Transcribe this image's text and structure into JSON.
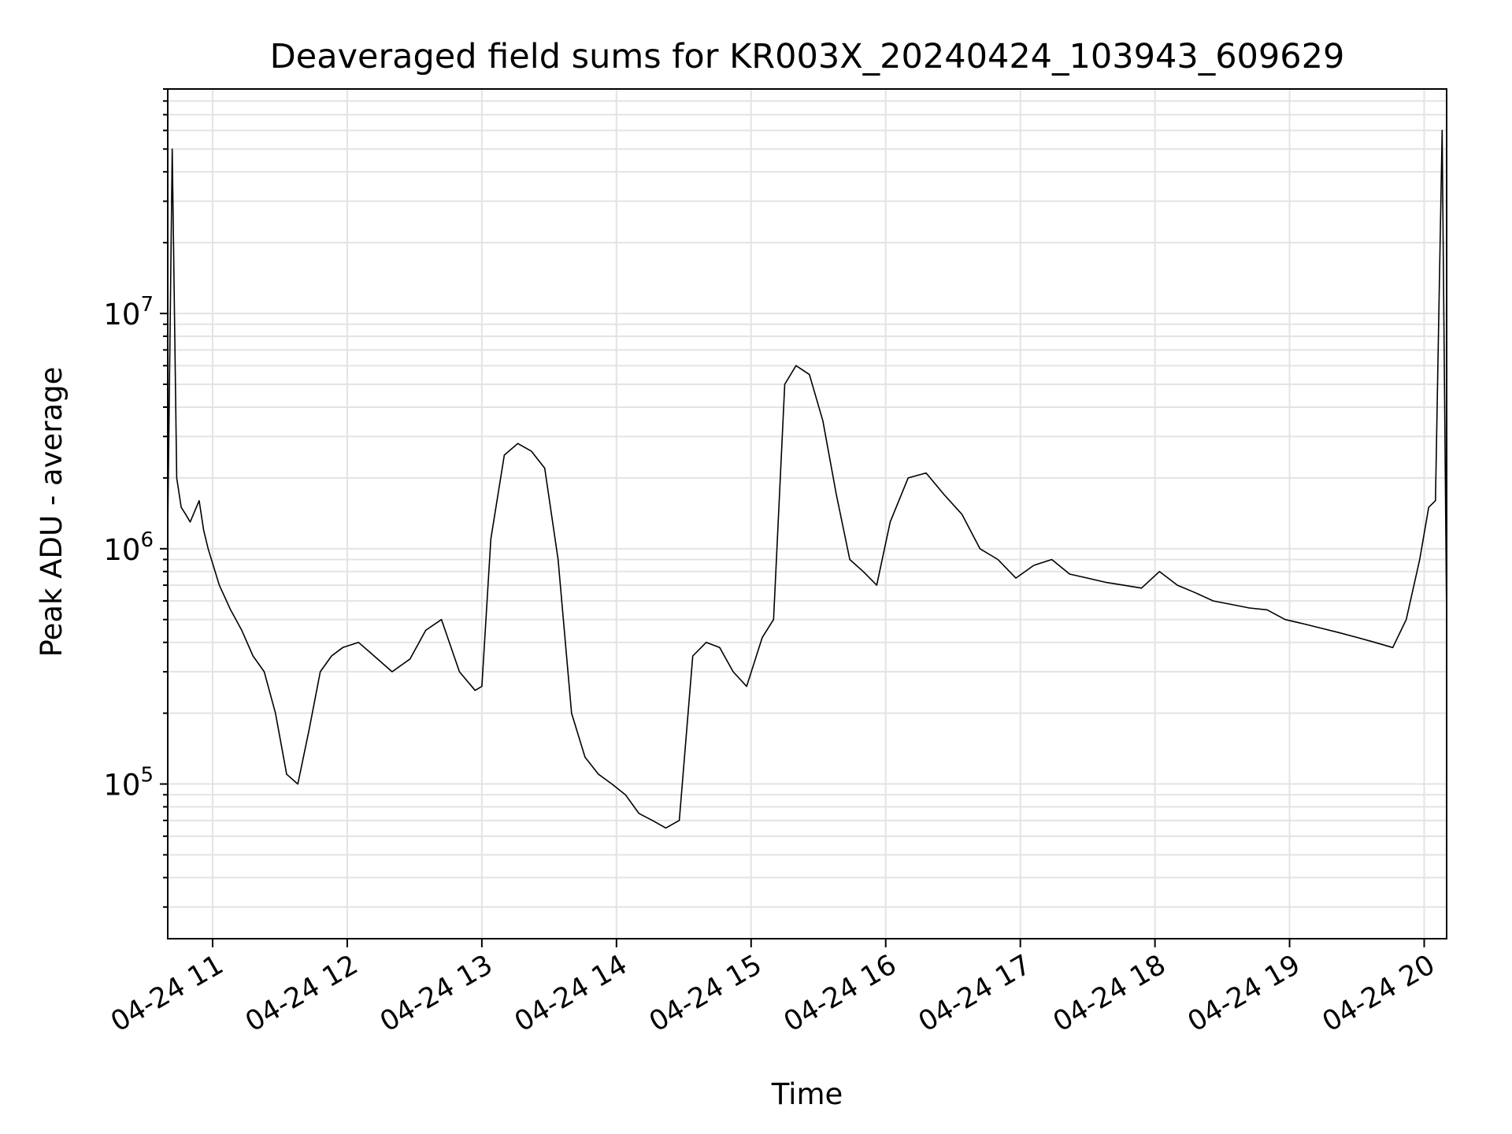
{
  "chart_data": {
    "type": "line",
    "title": "Deaveraged field sums for KR003X_20240424_103943_609629",
    "xlabel": "Time",
    "ylabel": "Peak ADU - average",
    "yscale": "log",
    "xlim": [
      "2024-04-24 10:40",
      "2024-04-24 20:10"
    ],
    "ylim": [
      22000,
      90000000
    ],
    "grid": true,
    "line_color": "#000000",
    "grid_color": "#e3e3e3",
    "x_ticks": [
      {
        "value": "2024-04-24 11:00",
        "label": "04-24 11"
      },
      {
        "value": "2024-04-24 12:00",
        "label": "04-24 12"
      },
      {
        "value": "2024-04-24 13:00",
        "label": "04-24 13"
      },
      {
        "value": "2024-04-24 14:00",
        "label": "04-24 14"
      },
      {
        "value": "2024-04-24 15:00",
        "label": "04-24 15"
      },
      {
        "value": "2024-04-24 16:00",
        "label": "04-24 16"
      },
      {
        "value": "2024-04-24 17:00",
        "label": "04-24 17"
      },
      {
        "value": "2024-04-24 18:00",
        "label": "04-24 18"
      },
      {
        "value": "2024-04-24 19:00",
        "label": "04-24 19"
      },
      {
        "value": "2024-04-24 20:00",
        "label": "04-24 20"
      }
    ],
    "y_ticks": [
      {
        "value": 100000,
        "base": "10",
        "exp": "5"
      },
      {
        "value": 1000000,
        "base": "10",
        "exp": "6"
      },
      {
        "value": 10000000,
        "base": "10",
        "exp": "7"
      }
    ],
    "series": [
      {
        "x": [
          "2024-04-24 10:40",
          "2024-04-24 10:42",
          "2024-04-24 10:44",
          "2024-04-24 10:46",
          "2024-04-24 10:48",
          "2024-04-24 10:50",
          "2024-04-24 10:54",
          "2024-04-24 10:56",
          "2024-04-24 10:58",
          "2024-04-24 11:03",
          "2024-04-24 11:08",
          "2024-04-24 11:13",
          "2024-04-24 11:18",
          "2024-04-24 11:23",
          "2024-04-24 11:28",
          "2024-04-24 11:33",
          "2024-04-24 11:38",
          "2024-04-24 11:43",
          "2024-04-24 11:48",
          "2024-04-24 11:53",
          "2024-04-24 11:58",
          "2024-04-24 12:05",
          "2024-04-24 12:12",
          "2024-04-24 12:20",
          "2024-04-24 12:28",
          "2024-04-24 12:35",
          "2024-04-24 12:42",
          "2024-04-24 12:50",
          "2024-04-24 12:57",
          "2024-04-24 13:00",
          "2024-04-24 13:04",
          "2024-04-24 13:10",
          "2024-04-24 13:16",
          "2024-04-24 13:22",
          "2024-04-24 13:28",
          "2024-04-24 13:34",
          "2024-04-24 13:40",
          "2024-04-24 13:46",
          "2024-04-24 13:52",
          "2024-04-24 13:58",
          "2024-04-24 14:04",
          "2024-04-24 14:10",
          "2024-04-24 14:16",
          "2024-04-24 14:22",
          "2024-04-24 14:28",
          "2024-04-24 14:34",
          "2024-04-24 14:40",
          "2024-04-24 14:46",
          "2024-04-24 14:52",
          "2024-04-24 14:58",
          "2024-04-24 15:05",
          "2024-04-24 15:10",
          "2024-04-24 15:15",
          "2024-04-24 15:20",
          "2024-04-24 15:26",
          "2024-04-24 15:32",
          "2024-04-24 15:38",
          "2024-04-24 15:44",
          "2024-04-24 15:50",
          "2024-04-24 15:56",
          "2024-04-24 16:02",
          "2024-04-24 16:10",
          "2024-04-24 16:18",
          "2024-04-24 16:26",
          "2024-04-24 16:34",
          "2024-04-24 16:42",
          "2024-04-24 16:50",
          "2024-04-24 16:58",
          "2024-04-24 17:06",
          "2024-04-24 17:14",
          "2024-04-24 17:22",
          "2024-04-24 17:30",
          "2024-04-24 17:38",
          "2024-04-24 17:46",
          "2024-04-24 17:54",
          "2024-04-24 18:02",
          "2024-04-24 18:10",
          "2024-04-24 18:18",
          "2024-04-24 18:26",
          "2024-04-24 18:34",
          "2024-04-24 18:42",
          "2024-04-24 18:50",
          "2024-04-24 18:58",
          "2024-04-24 19:06",
          "2024-04-24 19:14",
          "2024-04-24 19:22",
          "2024-04-24 19:30",
          "2024-04-24 19:38",
          "2024-04-24 19:46",
          "2024-04-24 19:52",
          "2024-04-24 19:58",
          "2024-04-24 20:02",
          "2024-04-24 20:05",
          "2024-04-24 20:08",
          "2024-04-24 20:10"
        ],
        "y": [
          1200000,
          50000000,
          2000000,
          1500000,
          1400000,
          1300000,
          1600000,
          1200000,
          1000000,
          700000,
          550000,
          450000,
          350000,
          300000,
          200000,
          110000,
          100000,
          170000,
          300000,
          350000,
          380000,
          400000,
          350000,
          300000,
          340000,
          450000,
          500000,
          300000,
          250000,
          260000,
          1100000,
          2500000,
          2800000,
          2600000,
          2200000,
          900000,
          200000,
          130000,
          110000,
          100000,
          90000,
          75000,
          70000,
          65000,
          70000,
          350000,
          400000,
          380000,
          300000,
          260000,
          420000,
          500000,
          5000000,
          6000000,
          5500000,
          3500000,
          1700000,
          900000,
          800000,
          700000,
          1300000,
          2000000,
          2100000,
          1700000,
          1400000,
          1000000,
          900000,
          750000,
          850000,
          900000,
          780000,
          750000,
          720000,
          700000,
          680000,
          800000,
          700000,
          650000,
          600000,
          580000,
          560000,
          550000,
          500000,
          480000,
          460000,
          440000,
          420000,
          400000,
          380000,
          500000,
          900000,
          1500000,
          1600000,
          60000000,
          500000
        ]
      }
    ]
  }
}
